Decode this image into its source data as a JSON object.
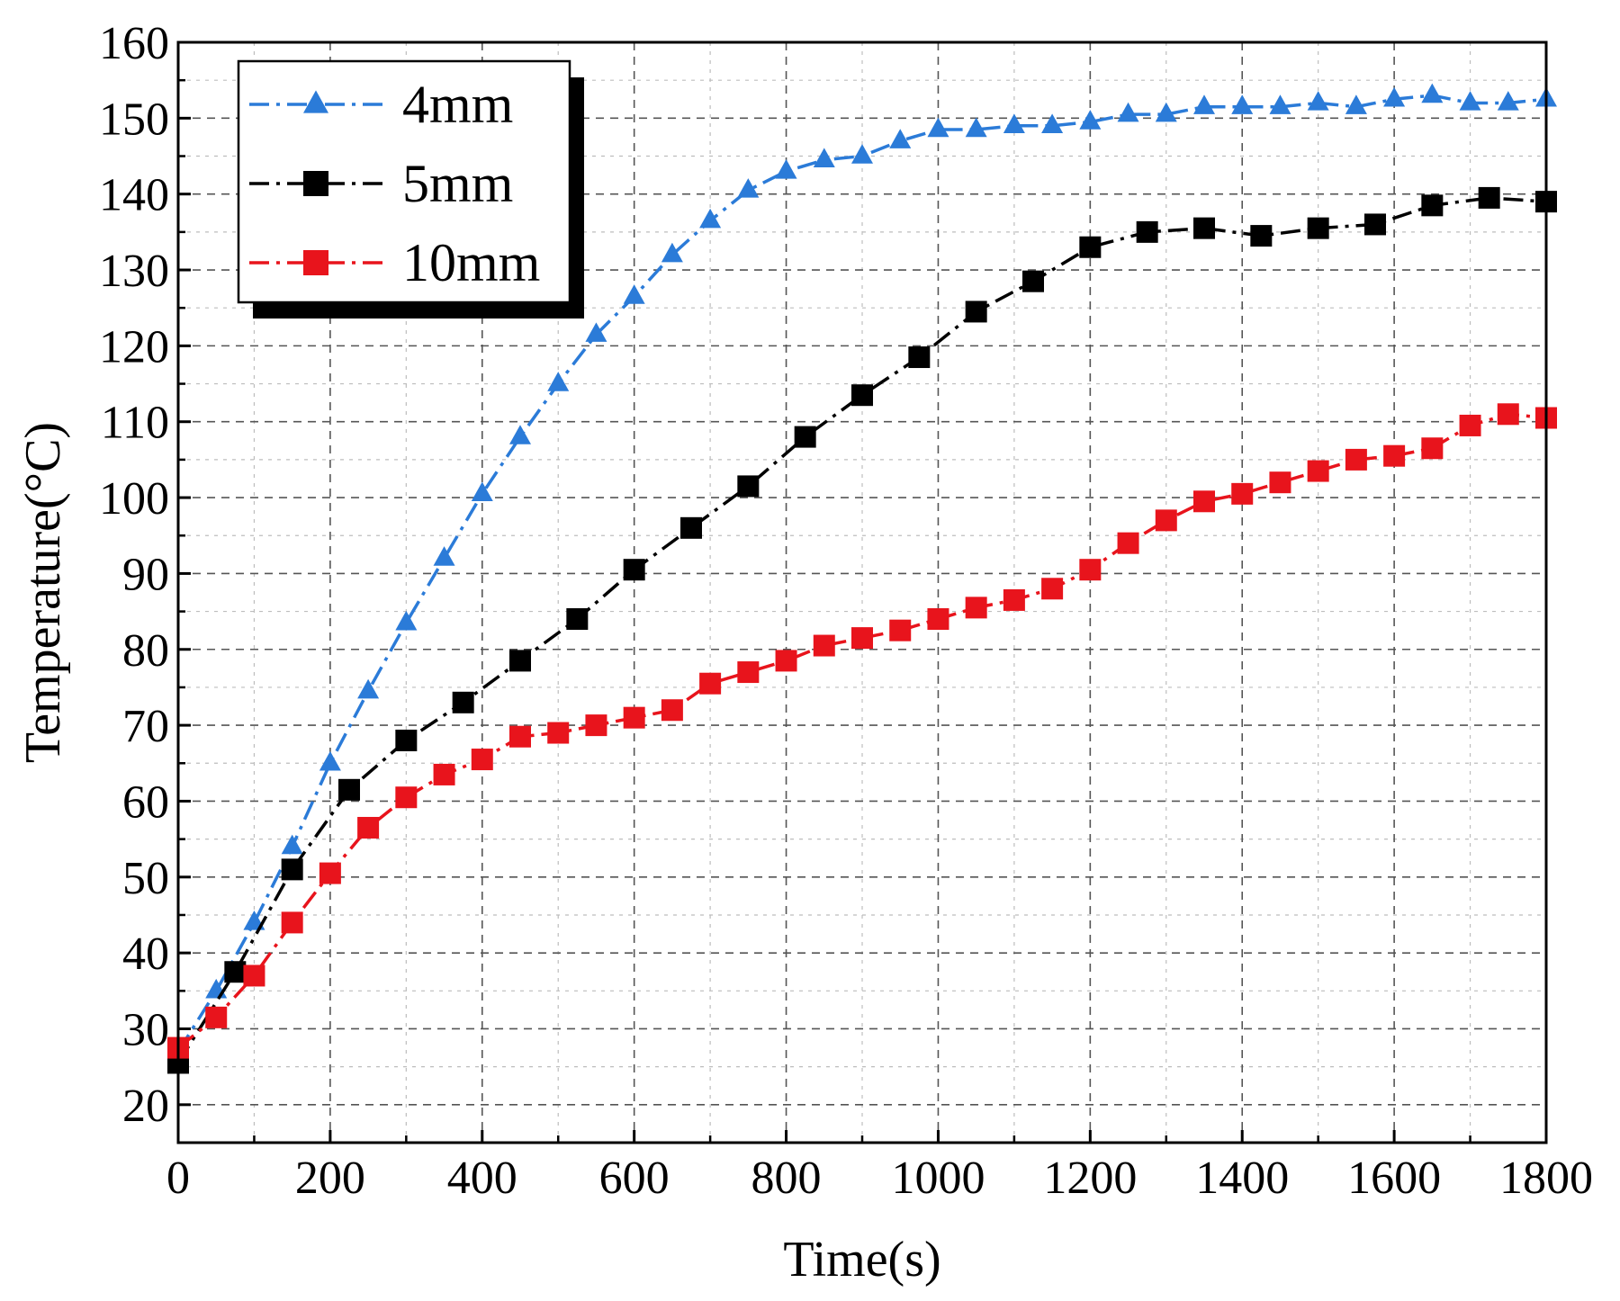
{
  "chart_data": {
    "type": "line",
    "title": "",
    "xlabel": "Time(s)",
    "ylabel": "Temperature(°C)",
    "xlim": [
      0,
      1800
    ],
    "ylim": [
      15,
      160
    ],
    "xticks": [
      0,
      200,
      400,
      600,
      800,
      1000,
      1200,
      1400,
      1600,
      1800
    ],
    "yticks": [
      20,
      30,
      40,
      50,
      60,
      70,
      80,
      90,
      100,
      110,
      120,
      130,
      140,
      150,
      160
    ],
    "grid": true,
    "legend_position": "top-left",
    "series": [
      {
        "name": "4mm",
        "color": "#2b7bd8",
        "marker": "triangle",
        "x": [
          0,
          50,
          100,
          150,
          200,
          250,
          300,
          350,
          400,
          450,
          500,
          550,
          600,
          650,
          700,
          750,
          800,
          850,
          900,
          950,
          1000,
          1050,
          1100,
          1150,
          1200,
          1250,
          1300,
          1350,
          1400,
          1450,
          1500,
          1550,
          1600,
          1650,
          1700,
          1750,
          1800
        ],
        "y": [
          27,
          35,
          44,
          54,
          65,
          74.5,
          83.5,
          92,
          100.5,
          108,
          115,
          121.5,
          126.5,
          132,
          136.5,
          140.5,
          143,
          144.5,
          145,
          147,
          148.5,
          148.5,
          149,
          149,
          149.5,
          150.5,
          150.5,
          151.5,
          151.5,
          151.5,
          152,
          151.5,
          152.5,
          153,
          152,
          152,
          152.5
        ]
      },
      {
        "name": "5mm",
        "color": "#000000",
        "marker": "square",
        "x": [
          0,
          75,
          150,
          225,
          300,
          375,
          450,
          525,
          600,
          675,
          750,
          825,
          900,
          975,
          1050,
          1125,
          1200,
          1275,
          1350,
          1425,
          1500,
          1575,
          1650,
          1725,
          1800
        ],
        "y": [
          25.5,
          37.5,
          51,
          61.5,
          68,
          73,
          78.5,
          84,
          90.5,
          96,
          101.5,
          108,
          113.5,
          118.5,
          124.5,
          128.5,
          133,
          135,
          135.5,
          134.5,
          135.5,
          136,
          138.5,
          139.5,
          139
        ]
      },
      {
        "name": "10mm",
        "color": "#e8141c",
        "marker": "square",
        "x": [
          0,
          50,
          100,
          150,
          200,
          250,
          300,
          350,
          400,
          450,
          500,
          550,
          600,
          650,
          700,
          750,
          800,
          850,
          900,
          950,
          1000,
          1050,
          1100,
          1150,
          1200,
          1250,
          1300,
          1350,
          1400,
          1450,
          1500,
          1550,
          1600,
          1650,
          1700,
          1750,
          1800
        ],
        "y": [
          27.5,
          31.5,
          37,
          44,
          50.5,
          56.5,
          60.5,
          63.5,
          65.5,
          68.5,
          69,
          70,
          71,
          72,
          75.5,
          77,
          78.5,
          80.5,
          81.5,
          82.5,
          84,
          85.5,
          86.5,
          88,
          90.5,
          94,
          97,
          99.5,
          100.5,
          102,
          103.5,
          105,
          105.5,
          106.5,
          109.5,
          111,
          110.5
        ]
      }
    ]
  }
}
